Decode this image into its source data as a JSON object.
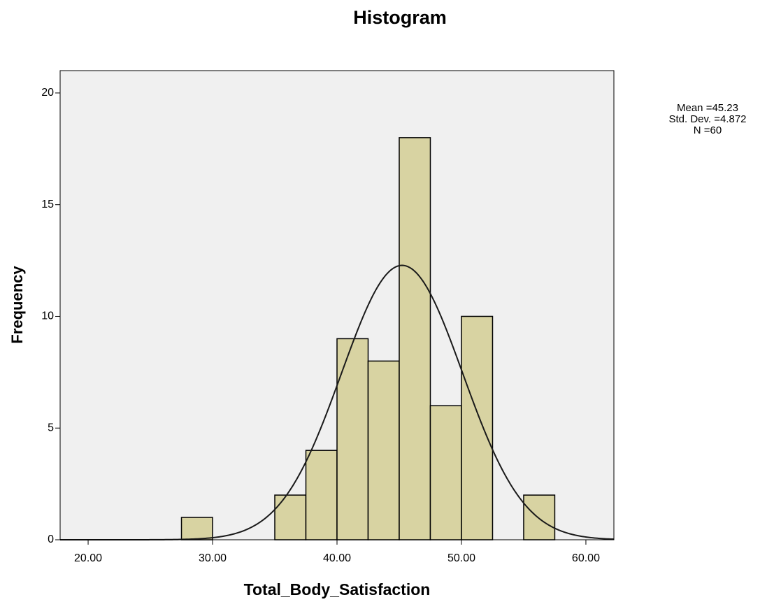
{
  "chart_data": {
    "type": "histogram",
    "title": "Histogram",
    "x_label": "Total_Body_Satisfaction",
    "y_label": "Frequency",
    "bins": [
      27.5,
      30,
      32.5,
      35,
      37.5,
      40,
      42.5,
      45,
      47.5,
      50,
      52.5,
      55,
      57.5
    ],
    "values": [
      1,
      0,
      0,
      2,
      4,
      9,
      8,
      18,
      6,
      10,
      0,
      2
    ],
    "color": "#d8d3a2",
    "edge_color": "#000000",
    "plot_background": "#f0f0f0",
    "xlim": [
      17.75,
      62.25
    ],
    "xticks": [
      {
        "value": 20,
        "label": "20.00"
      },
      {
        "value": 30,
        "label": "30.00"
      },
      {
        "value": 40,
        "label": "40.00"
      },
      {
        "value": 50,
        "label": "50.00"
      },
      {
        "value": 60,
        "label": "60.00"
      }
    ],
    "ylim": [
      0,
      21
    ],
    "yticks": [
      0,
      5,
      10,
      15,
      20
    ],
    "stats": {
      "mean": {
        "value": 45.23,
        "label": "Mean =45.23"
      },
      "std": {
        "value": 4.872,
        "label": "Std. Dev. =4.872"
      },
      "n": {
        "value": 60,
        "label": "N =60"
      }
    },
    "curve_color": "#1a1a1a"
  }
}
